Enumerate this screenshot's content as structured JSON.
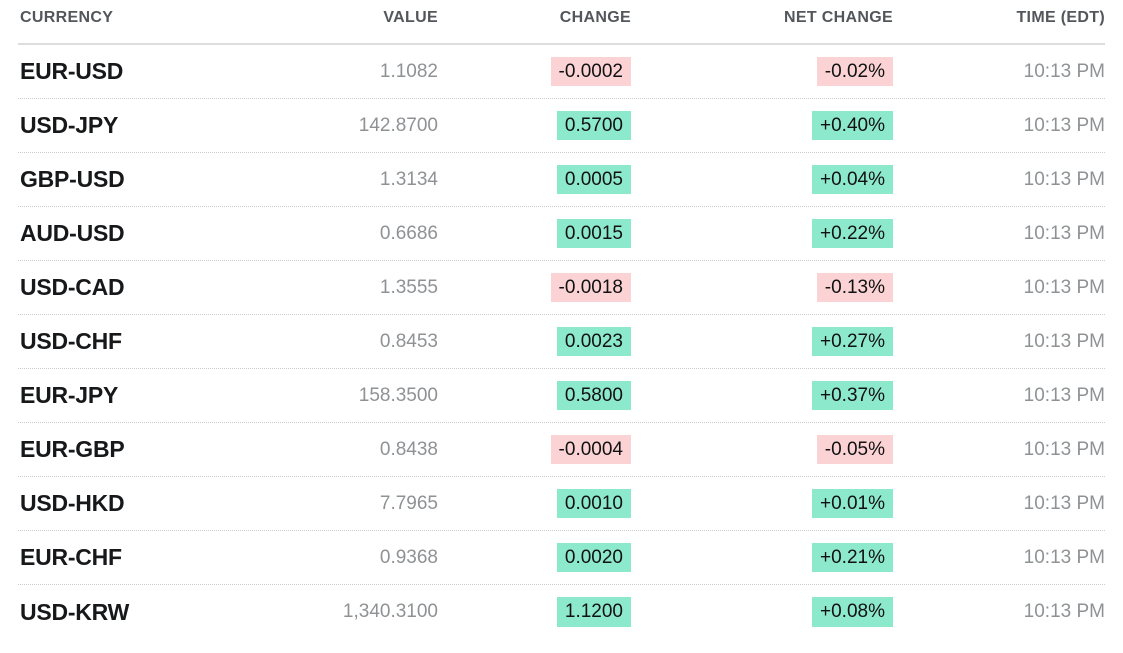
{
  "colors": {
    "positive_bg": "#8de9cc",
    "negative_bg": "#fbd3d5"
  },
  "table": {
    "columns": [
      {
        "key": "currency",
        "label": "CURRENCY"
      },
      {
        "key": "value",
        "label": "VALUE"
      },
      {
        "key": "change",
        "label": "CHANGE"
      },
      {
        "key": "net_change",
        "label": "NET CHANGE"
      },
      {
        "key": "time",
        "label": "TIME (EDT)"
      }
    ],
    "rows": [
      {
        "currency": "EUR-USD",
        "value": "1.1082",
        "change": "-0.0002",
        "net_change": "-0.02%",
        "time": "10:13 PM",
        "direction": "down"
      },
      {
        "currency": "USD-JPY",
        "value": "142.8700",
        "change": "0.5700",
        "net_change": "+0.40%",
        "time": "10:13 PM",
        "direction": "up"
      },
      {
        "currency": "GBP-USD",
        "value": "1.3134",
        "change": "0.0005",
        "net_change": "+0.04%",
        "time": "10:13 PM",
        "direction": "up"
      },
      {
        "currency": "AUD-USD",
        "value": "0.6686",
        "change": "0.0015",
        "net_change": "+0.22%",
        "time": "10:13 PM",
        "direction": "up"
      },
      {
        "currency": "USD-CAD",
        "value": "1.3555",
        "change": "-0.0018",
        "net_change": "-0.13%",
        "time": "10:13 PM",
        "direction": "down"
      },
      {
        "currency": "USD-CHF",
        "value": "0.8453",
        "change": "0.0023",
        "net_change": "+0.27%",
        "time": "10:13 PM",
        "direction": "up"
      },
      {
        "currency": "EUR-JPY",
        "value": "158.3500",
        "change": "0.5800",
        "net_change": "+0.37%",
        "time": "10:13 PM",
        "direction": "up"
      },
      {
        "currency": "EUR-GBP",
        "value": "0.8438",
        "change": "-0.0004",
        "net_change": "-0.05%",
        "time": "10:13 PM",
        "direction": "down"
      },
      {
        "currency": "USD-HKD",
        "value": "7.7965",
        "change": "0.0010",
        "net_change": "+0.01%",
        "time": "10:13 PM",
        "direction": "up"
      },
      {
        "currency": "EUR-CHF",
        "value": "0.9368",
        "change": "0.0020",
        "net_change": "+0.21%",
        "time": "10:13 PM",
        "direction": "up"
      },
      {
        "currency": "USD-KRW",
        "value": "1,340.3100",
        "change": "1.1200",
        "net_change": "+0.08%",
        "time": "10:13 PM",
        "direction": "up"
      }
    ]
  }
}
